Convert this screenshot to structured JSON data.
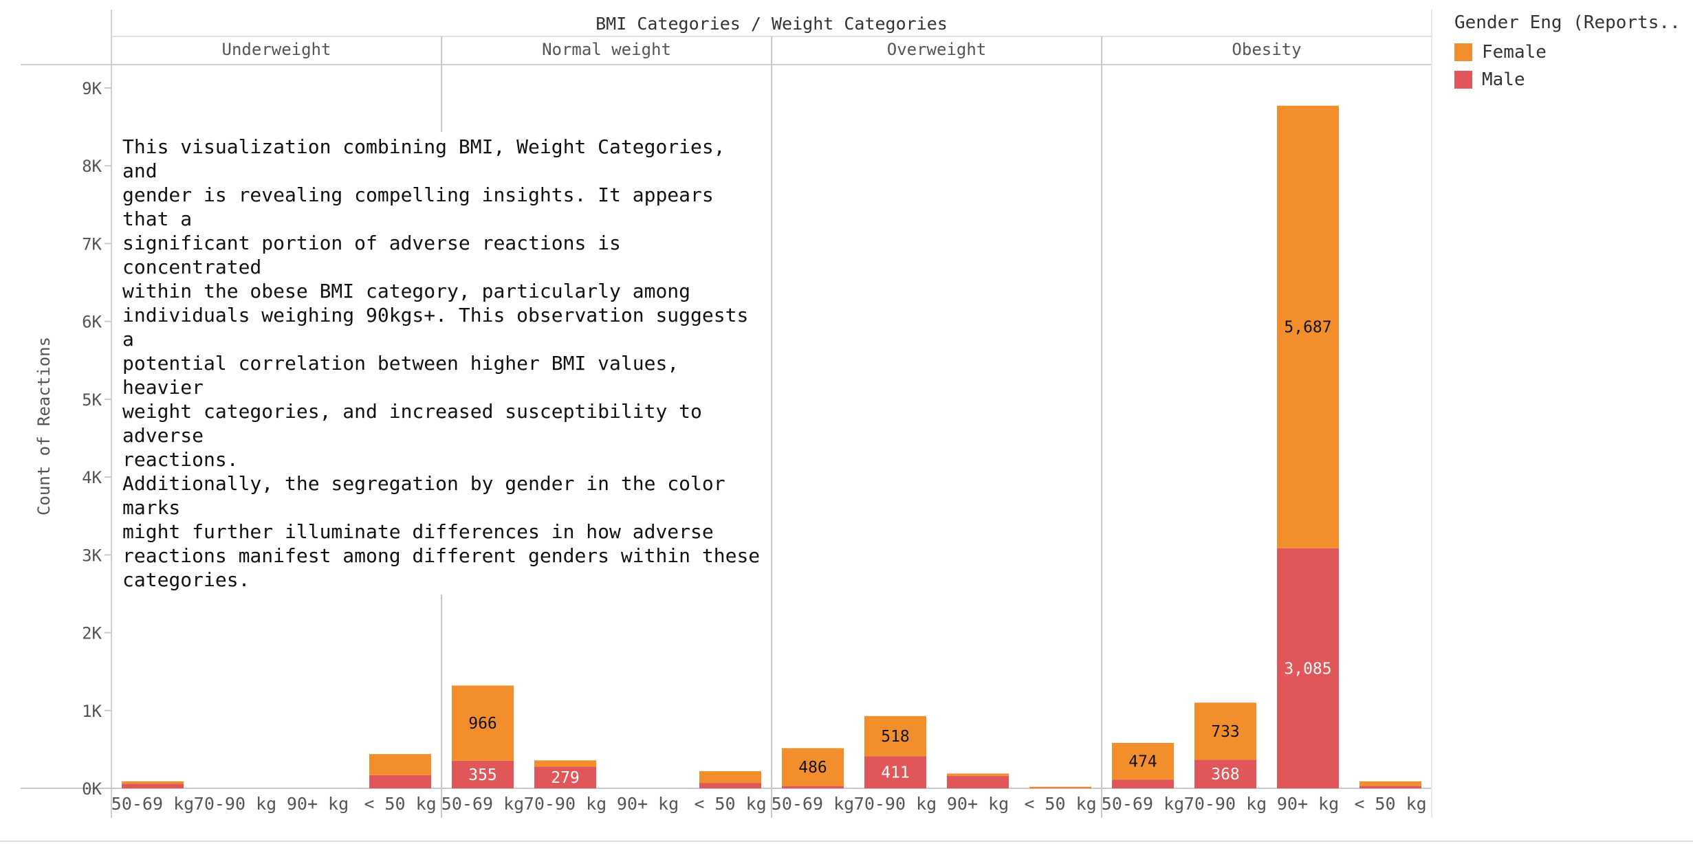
{
  "chart_data": {
    "type": "bar",
    "stacked": true,
    "title": "BMI Categories  /  Weight Categories",
    "ylabel": "Count of Reactions",
    "ylim": [
      0,
      9300
    ],
    "yticks": [
      {
        "value": 0,
        "label": "0K"
      },
      {
        "value": 1000,
        "label": "1K"
      },
      {
        "value": 2000,
        "label": "2K"
      },
      {
        "value": 3000,
        "label": "3K"
      },
      {
        "value": 4000,
        "label": "4K"
      },
      {
        "value": 5000,
        "label": "5K"
      },
      {
        "value": 6000,
        "label": "6K"
      },
      {
        "value": 7000,
        "label": "7K"
      },
      {
        "value": 8000,
        "label": "8K"
      },
      {
        "value": 9000,
        "label": "9K"
      }
    ],
    "categories": [
      "50-69 kg",
      "70-90 kg",
      "90+ kg",
      "< 50 kg"
    ],
    "legend": {
      "title": "Gender Eng (Reports..",
      "position": "top-right",
      "items": [
        {
          "name": "Female",
          "color": "#F28E2B"
        },
        {
          "name": "Male",
          "color": "#E15759"
        }
      ]
    },
    "panels": [
      {
        "name": "Underweight",
        "male": [
          60,
          0,
          0,
          170
        ],
        "female": [
          30,
          0,
          0,
          270
        ],
        "male_labels": [
          "",
          "",
          "",
          ""
        ],
        "female_labels": [
          "",
          "",
          "",
          ""
        ]
      },
      {
        "name": "Normal weight",
        "male": [
          355,
          279,
          0,
          70
        ],
        "female": [
          966,
          80,
          0,
          150
        ],
        "male_labels": [
          "355",
          "279",
          "",
          ""
        ],
        "female_labels": [
          "966",
          "",
          "",
          ""
        ]
      },
      {
        "name": "Overweight",
        "male": [
          30,
          411,
          160,
          5
        ],
        "female": [
          486,
          518,
          30,
          15
        ],
        "male_labels": [
          "",
          "411",
          "",
          ""
        ],
        "female_labels": [
          "486",
          "518",
          "",
          ""
        ]
      },
      {
        "name": "Obesity",
        "male": [
          110,
          368,
          3085,
          30
        ],
        "female": [
          474,
          733,
          5687,
          60
        ],
        "male_labels": [
          "",
          "368",
          "3,085",
          ""
        ],
        "female_labels": [
          "474",
          "733",
          "5,687",
          ""
        ]
      }
    ],
    "grid": false
  },
  "annotation": "This visualization combining BMI, Weight Categories, and\ngender is revealing compelling insights. It appears that a\nsignificant portion of adverse reactions is concentrated\nwithin the obese BMI category, particularly among\nindividuals weighing 90kgs+. This observation suggests a\npotential correlation between higher BMI values, heavier\nweight categories, and increased susceptibility to adverse\nreactions.\nAdditionally, the segregation by gender in the color marks\nmight further illuminate differences in how adverse\nreactions manifest among different genders within these\ncategories."
}
